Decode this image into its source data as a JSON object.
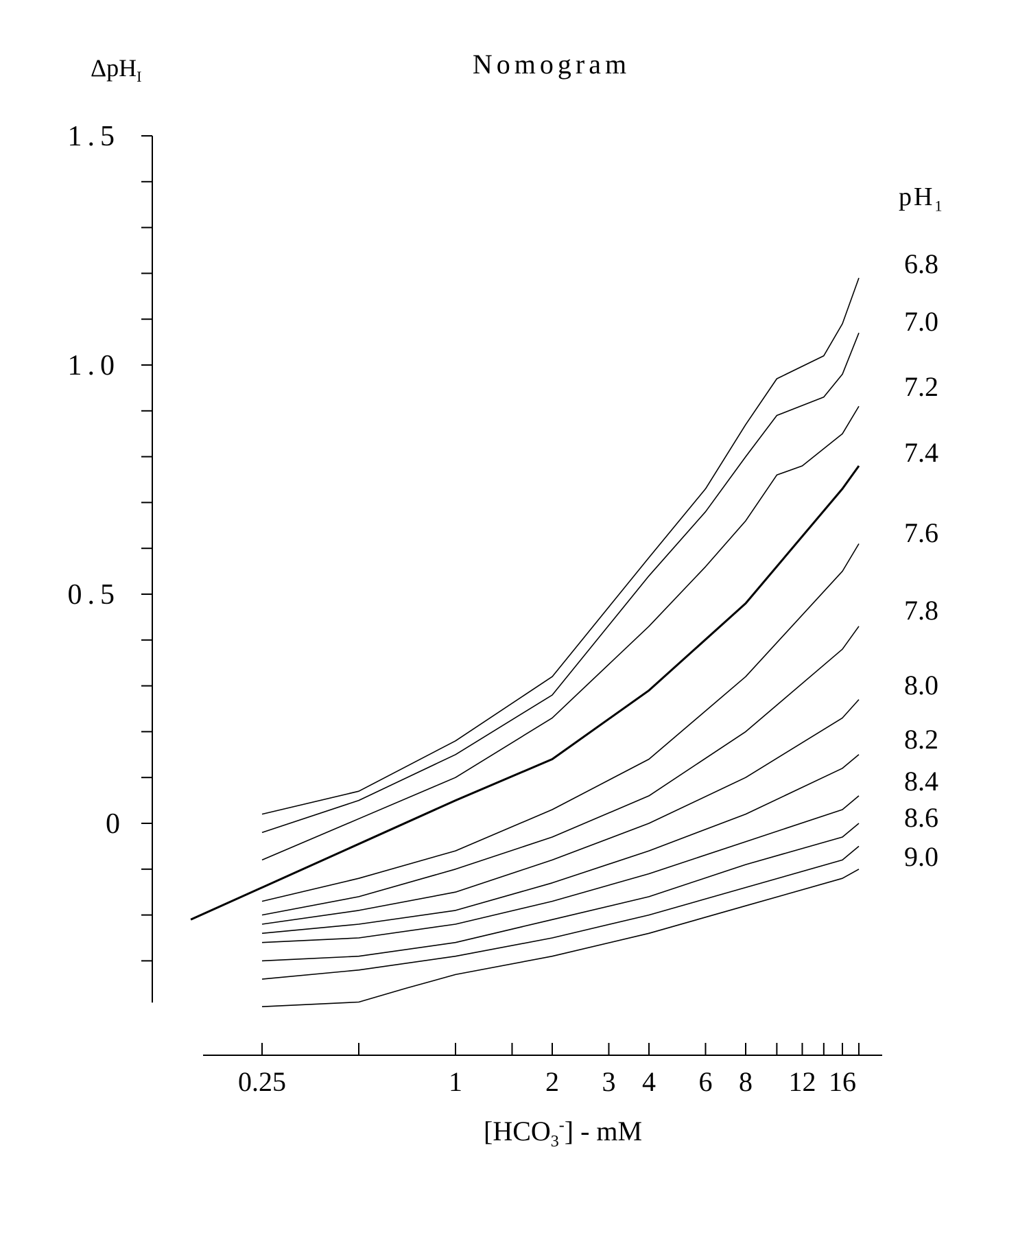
{
  "title": "Nomogram",
  "ylabel": {
    "main": "ΔpH",
    "sub": "I"
  },
  "xlabel": {
    "pre": "[HCO",
    "sub": "3",
    "sup": "-",
    "post": "] - mM"
  },
  "legend": {
    "title_main": "pH",
    "title_sub": "1"
  },
  "chart_data": {
    "type": "line",
    "title": "Nomogram",
    "x_scale": "log",
    "xlim": [
      0.15,
      20
    ],
    "ylim": [
      -0.4,
      1.5
    ],
    "y_ticks": [
      {
        "value": 1.5,
        "label": "1.5"
      },
      {
        "value": 1.0,
        "label": "1.0"
      },
      {
        "value": 0.5,
        "label": "0.5"
      },
      {
        "value": 0.0,
        "label": "0"
      }
    ],
    "y_minor_step": 0.1,
    "x_ticks": [
      {
        "value": 0.25,
        "label": "0.25"
      },
      {
        "value": 0.5,
        "label": ""
      },
      {
        "value": 1,
        "label": "1"
      },
      {
        "value": 1.5,
        "label": ""
      },
      {
        "value": 2,
        "label": "2"
      },
      {
        "value": 3,
        "label": "3"
      },
      {
        "value": 4,
        "label": "4"
      },
      {
        "value": 6,
        "label": "6"
      },
      {
        "value": 8,
        "label": "8"
      },
      {
        "value": 10,
        "label": ""
      },
      {
        "value": 12,
        "label": "12"
      },
      {
        "value": 14,
        "label": ""
      },
      {
        "value": 16,
        "label": "16"
      },
      {
        "value": 18,
        "label": ""
      }
    ],
    "series": [
      {
        "name": "6.8",
        "x": [
          0.25,
          0.5,
          1,
          2,
          4,
          6,
          8,
          10,
          14,
          16,
          18
        ],
        "y": [
          0.02,
          0.07,
          0.18,
          0.32,
          0.58,
          0.73,
          0.87,
          0.97,
          1.02,
          1.09,
          1.19
        ]
      },
      {
        "name": "7.0",
        "x": [
          0.25,
          0.5,
          1,
          2,
          4,
          6,
          8,
          10,
          14,
          16,
          18
        ],
        "y": [
          -0.02,
          0.05,
          0.15,
          0.28,
          0.54,
          0.68,
          0.8,
          0.89,
          0.93,
          0.98,
          1.07
        ]
      },
      {
        "name": "7.2",
        "x": [
          0.25,
          0.5,
          1,
          2,
          4,
          6,
          8,
          10,
          12,
          16,
          18
        ],
        "y": [
          -0.08,
          0.01,
          0.1,
          0.23,
          0.43,
          0.56,
          0.66,
          0.76,
          0.78,
          0.85,
          0.91
        ]
      },
      {
        "name": "7.4",
        "x": [
          0.15,
          1,
          2,
          4,
          8,
          16,
          18
        ],
        "y": [
          -0.21,
          0.05,
          0.14,
          0.29,
          0.48,
          0.73,
          0.78
        ]
      },
      {
        "name": "7.6",
        "x": [
          0.25,
          0.5,
          1,
          2,
          4,
          8,
          16,
          18
        ],
        "y": [
          -0.17,
          -0.12,
          -0.06,
          0.03,
          0.14,
          0.32,
          0.55,
          0.61
        ]
      },
      {
        "name": "7.8",
        "x": [
          0.25,
          0.5,
          1,
          2,
          4,
          8,
          16,
          18
        ],
        "y": [
          -0.2,
          -0.16,
          -0.1,
          -0.03,
          0.06,
          0.2,
          0.38,
          0.43
        ]
      },
      {
        "name": "8.0",
        "x": [
          0.25,
          0.5,
          1,
          2,
          4,
          8,
          16,
          18
        ],
        "y": [
          -0.22,
          -0.19,
          -0.15,
          -0.08,
          0.0,
          0.1,
          0.23,
          0.27
        ]
      },
      {
        "name": "8.2",
        "x": [
          0.25,
          0.5,
          1,
          2,
          4,
          8,
          16,
          18
        ],
        "y": [
          -0.24,
          -0.22,
          -0.19,
          -0.13,
          -0.06,
          0.02,
          0.12,
          0.15
        ]
      },
      {
        "name": "8.4",
        "x": [
          0.25,
          0.5,
          1,
          2,
          4,
          8,
          16,
          18
        ],
        "y": [
          -0.26,
          -0.25,
          -0.22,
          -0.17,
          -0.11,
          -0.04,
          0.03,
          0.06
        ]
      },
      {
        "name": "8.6",
        "x": [
          0.25,
          0.5,
          1,
          2,
          4,
          8,
          16,
          18
        ],
        "y": [
          -0.3,
          -0.29,
          -0.26,
          -0.21,
          -0.16,
          -0.09,
          -0.03,
          0.0
        ]
      },
      {
        "name": "9.0",
        "x": [
          0.25,
          0.5,
          1,
          2,
          4,
          8,
          16,
          18
        ],
        "y": [
          -0.34,
          -0.32,
          -0.29,
          -0.25,
          -0.2,
          -0.14,
          -0.08,
          -0.05
        ]
      },
      {
        "name": "",
        "x": [
          0.25,
          0.5,
          0.7,
          1,
          2,
          4,
          8,
          16,
          18
        ],
        "y": [
          -0.4,
          -0.39,
          -0.36,
          -0.33,
          -0.29,
          -0.24,
          -0.18,
          -0.12,
          -0.1
        ]
      }
    ],
    "emphasized_series": "7.4"
  }
}
